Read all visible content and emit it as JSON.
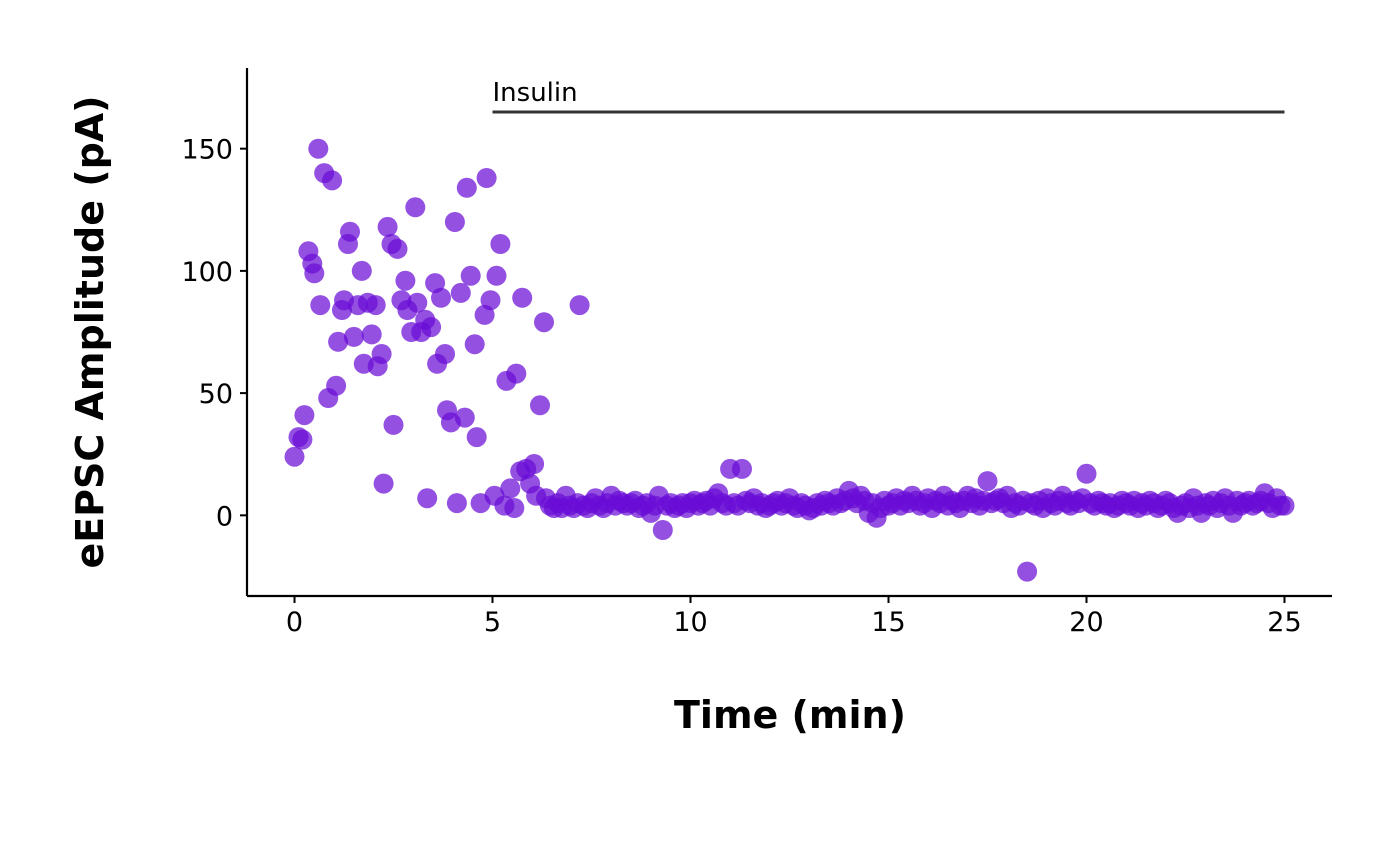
{
  "chart_data": {
    "type": "scatter",
    "xlabel": "Time (min)",
    "ylabel": "eEPSC Amplitude (pA)",
    "xlim": [
      -1.2,
      26.2
    ],
    "ylim": [
      -33,
      183
    ],
    "x_ticks": [
      0,
      5,
      10,
      15,
      20,
      25
    ],
    "y_ticks": [
      0,
      50,
      100,
      150
    ],
    "grid": false,
    "point_color": "#6A0DD6",
    "point_opacity": 0.72,
    "annotation": {
      "label": "Insulin",
      "x_start": 5,
      "x_end": 25,
      "y": 165,
      "line_color": "#333333"
    },
    "points": [
      [
        0.0,
        24
      ],
      [
        0.1,
        32
      ],
      [
        0.2,
        31
      ],
      [
        0.25,
        41
      ],
      [
        0.35,
        108
      ],
      [
        0.45,
        103
      ],
      [
        0.5,
        99
      ],
      [
        0.6,
        150
      ],
      [
        0.65,
        86
      ],
      [
        0.75,
        140
      ],
      [
        0.85,
        48
      ],
      [
        0.95,
        137
      ],
      [
        1.05,
        53
      ],
      [
        1.1,
        71
      ],
      [
        1.2,
        84
      ],
      [
        1.25,
        88
      ],
      [
        1.35,
        111
      ],
      [
        1.4,
        116
      ],
      [
        1.5,
        73
      ],
      [
        1.6,
        86
      ],
      [
        1.7,
        100
      ],
      [
        1.75,
        62
      ],
      [
        1.85,
        87
      ],
      [
        1.95,
        74
      ],
      [
        2.05,
        86
      ],
      [
        2.1,
        61
      ],
      [
        2.2,
        66
      ],
      [
        2.25,
        13
      ],
      [
        2.35,
        118
      ],
      [
        2.45,
        111
      ],
      [
        2.5,
        37
      ],
      [
        2.6,
        109
      ],
      [
        2.7,
        88
      ],
      [
        2.8,
        96
      ],
      [
        2.85,
        84
      ],
      [
        2.95,
        75
      ],
      [
        3.05,
        126
      ],
      [
        3.1,
        87
      ],
      [
        3.2,
        75
      ],
      [
        3.3,
        80
      ],
      [
        3.35,
        7
      ],
      [
        3.45,
        77
      ],
      [
        3.55,
        95
      ],
      [
        3.6,
        62
      ],
      [
        3.7,
        89
      ],
      [
        3.8,
        66
      ],
      [
        3.85,
        43
      ],
      [
        3.95,
        38
      ],
      [
        4.05,
        120
      ],
      [
        4.1,
        5
      ],
      [
        4.2,
        91
      ],
      [
        4.3,
        40
      ],
      [
        4.35,
        134
      ],
      [
        4.45,
        98
      ],
      [
        4.55,
        70
      ],
      [
        4.6,
        32
      ],
      [
        4.7,
        5
      ],
      [
        4.8,
        82
      ],
      [
        4.85,
        138
      ],
      [
        4.95,
        88
      ],
      [
        5.05,
        8
      ],
      [
        5.1,
        98
      ],
      [
        5.2,
        111
      ],
      [
        5.3,
        4
      ],
      [
        5.35,
        55
      ],
      [
        5.45,
        11
      ],
      [
        5.55,
        3
      ],
      [
        5.6,
        58
      ],
      [
        5.7,
        18
      ],
      [
        5.75,
        89
      ],
      [
        5.85,
        19
      ],
      [
        5.95,
        13
      ],
      [
        6.05,
        21
      ],
      [
        6.1,
        8
      ],
      [
        6.2,
        45
      ],
      [
        6.3,
        79
      ],
      [
        6.35,
        7
      ],
      [
        6.45,
        4
      ],
      [
        6.55,
        3
      ],
      [
        6.65,
        5
      ],
      [
        6.75,
        3
      ],
      [
        6.85,
        8
      ],
      [
        6.95,
        4
      ],
      [
        7.05,
        3
      ],
      [
        7.15,
        5
      ],
      [
        7.2,
        86
      ],
      [
        7.3,
        4
      ],
      [
        7.4,
        3
      ],
      [
        7.5,
        5
      ],
      [
        7.6,
        7
      ],
      [
        7.7,
        4
      ],
      [
        7.8,
        3
      ],
      [
        7.9,
        5
      ],
      [
        8.0,
        8
      ],
      [
        8.1,
        4
      ],
      [
        8.2,
        6
      ],
      [
        8.3,
        5
      ],
      [
        8.4,
        4
      ],
      [
        8.5,
        5
      ],
      [
        8.6,
        6
      ],
      [
        8.7,
        3
      ],
      [
        8.8,
        4
      ],
      [
        8.9,
        5
      ],
      [
        9.0,
        1
      ],
      [
        9.1,
        4
      ],
      [
        9.2,
        8
      ],
      [
        9.3,
        -6
      ],
      [
        9.4,
        4
      ],
      [
        9.5,
        5
      ],
      [
        9.6,
        3
      ],
      [
        9.7,
        4
      ],
      [
        9.8,
        5
      ],
      [
        9.9,
        3
      ],
      [
        10.0,
        5
      ],
      [
        10.1,
        6
      ],
      [
        10.2,
        4
      ],
      [
        10.3,
        5
      ],
      [
        10.4,
        6
      ],
      [
        10.5,
        4
      ],
      [
        10.6,
        7
      ],
      [
        10.7,
        9
      ],
      [
        10.8,
        5
      ],
      [
        10.9,
        4
      ],
      [
        11.0,
        19
      ],
      [
        11.1,
        5
      ],
      [
        11.2,
        4
      ],
      [
        11.3,
        19
      ],
      [
        11.4,
        6
      ],
      [
        11.5,
        5
      ],
      [
        11.6,
        7
      ],
      [
        11.7,
        4
      ],
      [
        11.8,
        5
      ],
      [
        11.9,
        3
      ],
      [
        12.0,
        4
      ],
      [
        12.1,
        5
      ],
      [
        12.2,
        6
      ],
      [
        12.3,
        4
      ],
      [
        12.4,
        5
      ],
      [
        12.5,
        7
      ],
      [
        12.6,
        4
      ],
      [
        12.7,
        3
      ],
      [
        12.8,
        5
      ],
      [
        12.9,
        4
      ],
      [
        13.0,
        2
      ],
      [
        13.1,
        3
      ],
      [
        13.2,
        5
      ],
      [
        13.3,
        4
      ],
      [
        13.4,
        6
      ],
      [
        13.5,
        5
      ],
      [
        13.6,
        4
      ],
      [
        13.7,
        7
      ],
      [
        13.8,
        5
      ],
      [
        13.9,
        6
      ],
      [
        14.0,
        10
      ],
      [
        14.1,
        7
      ],
      [
        14.2,
        5
      ],
      [
        14.3,
        8
      ],
      [
        14.4,
        6
      ],
      [
        14.5,
        1
      ],
      [
        14.6,
        5
      ],
      [
        14.7,
        -1
      ],
      [
        14.8,
        3
      ],
      [
        14.9,
        6
      ],
      [
        15.0,
        4
      ],
      [
        15.1,
        5
      ],
      [
        15.2,
        7
      ],
      [
        15.3,
        4
      ],
      [
        15.4,
        6
      ],
      [
        15.5,
        5
      ],
      [
        15.6,
        8
      ],
      [
        15.7,
        6
      ],
      [
        15.8,
        4
      ],
      [
        15.9,
        5
      ],
      [
        16.0,
        7
      ],
      [
        16.1,
        3
      ],
      [
        16.2,
        6
      ],
      [
        16.3,
        5
      ],
      [
        16.4,
        8
      ],
      [
        16.5,
        4
      ],
      [
        16.6,
        6
      ],
      [
        16.7,
        5
      ],
      [
        16.8,
        3
      ],
      [
        16.9,
        6
      ],
      [
        17.0,
        8
      ],
      [
        17.1,
        5
      ],
      [
        17.2,
        7
      ],
      [
        17.3,
        4
      ],
      [
        17.4,
        6
      ],
      [
        17.5,
        14
      ],
      [
        17.6,
        5
      ],
      [
        17.7,
        6
      ],
      [
        17.8,
        7
      ],
      [
        17.9,
        5
      ],
      [
        18.0,
        8
      ],
      [
        18.1,
        3
      ],
      [
        18.2,
        5
      ],
      [
        18.3,
        4
      ],
      [
        18.4,
        6
      ],
      [
        18.5,
        -23
      ],
      [
        18.6,
        5
      ],
      [
        18.7,
        4
      ],
      [
        18.8,
        6
      ],
      [
        18.9,
        3
      ],
      [
        19.0,
        7
      ],
      [
        19.1,
        5
      ],
      [
        19.2,
        4
      ],
      [
        19.3,
        6
      ],
      [
        19.4,
        8
      ],
      [
        19.5,
        5
      ],
      [
        19.6,
        4
      ],
      [
        19.7,
        6
      ],
      [
        19.8,
        5
      ],
      [
        19.9,
        7
      ],
      [
        20.0,
        17
      ],
      [
        20.1,
        5
      ],
      [
        20.2,
        4
      ],
      [
        20.3,
        6
      ],
      [
        20.4,
        5
      ],
      [
        20.5,
        4
      ],
      [
        20.6,
        5
      ],
      [
        20.7,
        3
      ],
      [
        20.8,
        4
      ],
      [
        20.9,
        6
      ],
      [
        21.0,
        5
      ],
      [
        21.1,
        4
      ],
      [
        21.2,
        6
      ],
      [
        21.3,
        3
      ],
      [
        21.4,
        5
      ],
      [
        21.5,
        4
      ],
      [
        21.6,
        6
      ],
      [
        21.7,
        5
      ],
      [
        21.8,
        3
      ],
      [
        21.9,
        4
      ],
      [
        22.0,
        6
      ],
      [
        22.1,
        5
      ],
      [
        22.2,
        3
      ],
      [
        22.3,
        1
      ],
      [
        22.4,
        4
      ],
      [
        22.5,
        5
      ],
      [
        22.6,
        3
      ],
      [
        22.7,
        7
      ],
      [
        22.8,
        4
      ],
      [
        22.9,
        1
      ],
      [
        23.0,
        5
      ],
      [
        23.1,
        4
      ],
      [
        23.2,
        6
      ],
      [
        23.3,
        3
      ],
      [
        23.4,
        5
      ],
      [
        23.5,
        7
      ],
      [
        23.6,
        4
      ],
      [
        23.7,
        1
      ],
      [
        23.8,
        6
      ],
      [
        23.9,
        4
      ],
      [
        24.0,
        5
      ],
      [
        24.1,
        6
      ],
      [
        24.2,
        4
      ],
      [
        24.3,
        5
      ],
      [
        24.4,
        6
      ],
      [
        24.5,
        9
      ],
      [
        24.6,
        5
      ],
      [
        24.7,
        3
      ],
      [
        24.8,
        7
      ],
      [
        24.9,
        4
      ],
      [
        25.0,
        4
      ]
    ]
  }
}
